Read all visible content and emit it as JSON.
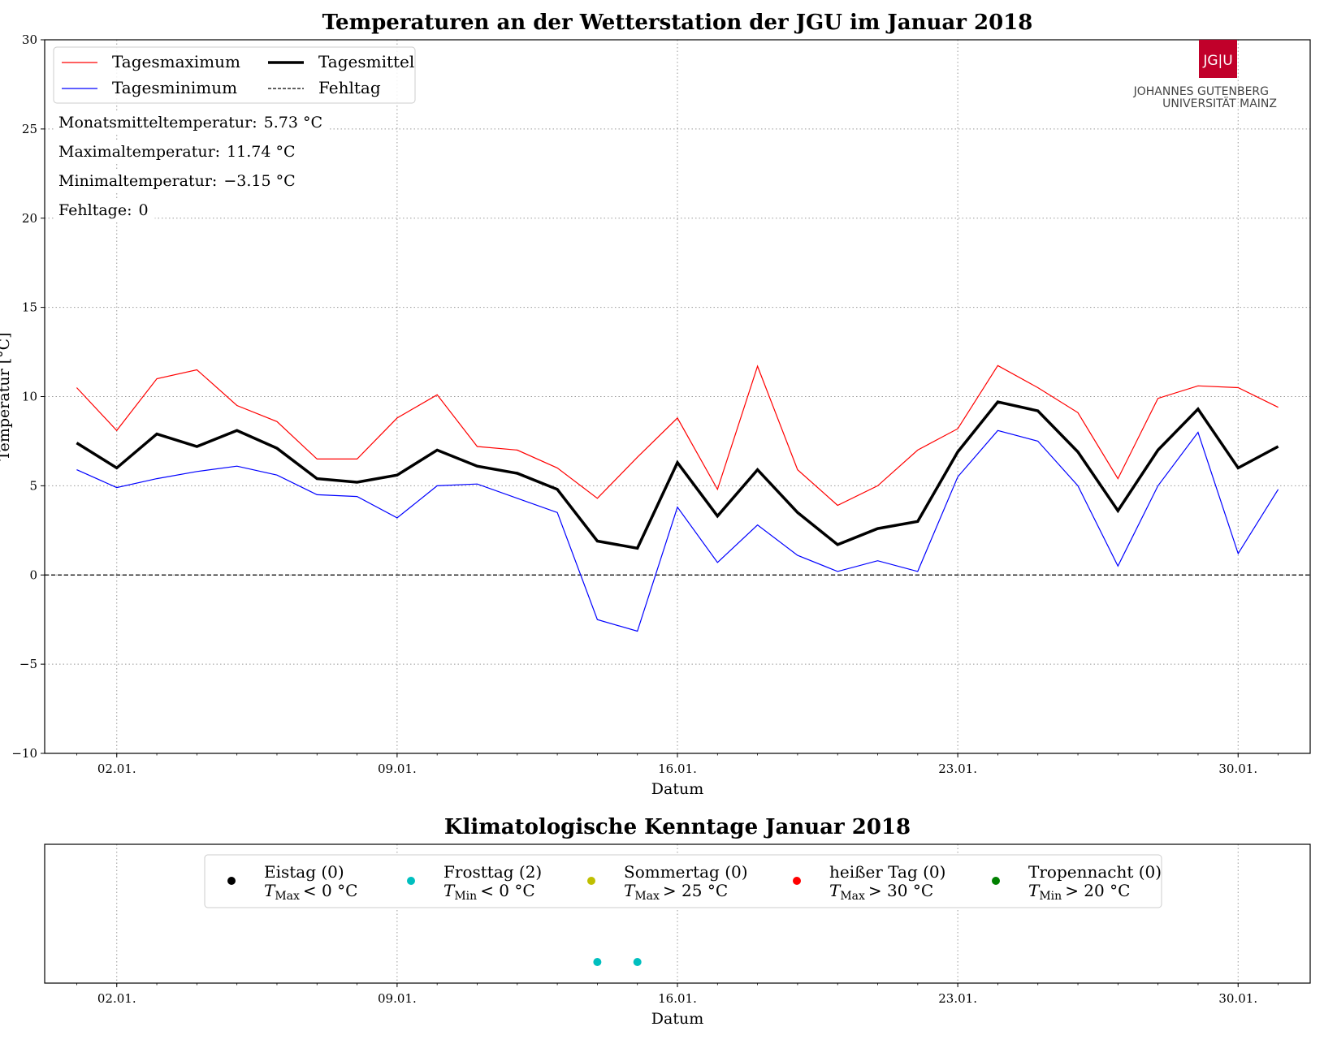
{
  "logo": {
    "mark": "JG|U",
    "line1": "JOHANNES GUTENBERG",
    "line2": "UNIVERSITÄT MAINZ",
    "color": "#c1002a"
  },
  "chart_data": [
    {
      "type": "line",
      "title": "Temperaturen an der Wetterstation der JGU im Januar 2018",
      "xlabel": "Datum",
      "ylabel": "Temperatur [°C]",
      "xlim": [
        0.2,
        31.8
      ],
      "ylim": [
        -10,
        30
      ],
      "yticks": [
        -10,
        -5,
        0,
        5,
        10,
        15,
        20,
        25,
        30
      ],
      "ytick_labels": [
        "−10",
        "−5",
        "0",
        "5",
        "10",
        "15",
        "20",
        "25",
        "30"
      ],
      "xticks": [
        2,
        9,
        16,
        23,
        30
      ],
      "xtick_labels": [
        "02.01.",
        "09.01.",
        "16.01.",
        "23.01.",
        "30.01."
      ],
      "grid": true,
      "legend_position": "top-left",
      "x": [
        1,
        2,
        3,
        4,
        5,
        6,
        7,
        8,
        9,
        10,
        11,
        12,
        13,
        14,
        15,
        16,
        17,
        18,
        19,
        20,
        21,
        22,
        23,
        24,
        25,
        26,
        27,
        28,
        29,
        30,
        31
      ],
      "series": [
        {
          "name": "Tagesmaximum",
          "color": "#ff0000",
          "values": [
            10.5,
            8.1,
            11.0,
            11.5,
            9.5,
            8.6,
            6.5,
            6.5,
            8.8,
            10.1,
            7.2,
            7.0,
            6.0,
            4.3,
            6.6,
            8.8,
            4.8,
            11.7,
            5.9,
            3.9,
            5.0,
            7.0,
            8.2,
            11.74,
            10.5,
            9.1,
            5.4,
            9.9,
            10.6,
            10.5,
            9.4
          ]
        },
        {
          "name": "Tagesminimum",
          "color": "#0000ff",
          "values": [
            5.9,
            4.9,
            5.4,
            5.8,
            6.1,
            5.6,
            4.5,
            4.4,
            3.2,
            5.0,
            5.1,
            4.3,
            3.5,
            -2.5,
            -3.15,
            3.8,
            0.7,
            2.8,
            1.1,
            0.2,
            0.8,
            0.2,
            5.5,
            8.1,
            7.5,
            5.0,
            0.5,
            5.0,
            8.0,
            1.2,
            4.8
          ]
        },
        {
          "name": "Tagesmittel",
          "color": "#000000",
          "values": [
            7.4,
            6.0,
            7.9,
            7.2,
            8.1,
            7.1,
            5.4,
            5.2,
            5.6,
            7.0,
            6.1,
            5.7,
            4.8,
            1.9,
            1.5,
            6.3,
            3.3,
            5.9,
            3.5,
            1.7,
            2.6,
            3.0,
            6.9,
            9.7,
            9.2,
            6.9,
            3.6,
            7.0,
            9.3,
            6.0,
            7.2
          ]
        }
      ],
      "reference_lines": [
        {
          "name": "Fehltag",
          "y": 0,
          "style": "dashed",
          "color": "#000000"
        }
      ],
      "annotations": [
        {
          "label": "Monatsmitteltemperatur:",
          "value": "5.73 °C"
        },
        {
          "label": "Maximaltemperatur:",
          "value": "11.74 °C"
        },
        {
          "label": "Minimaltemperatur:",
          "value": "−3.15 °C"
        },
        {
          "label": "Fehltage:",
          "value": "0"
        }
      ]
    },
    {
      "type": "scatter",
      "title": "Klimatologische Kenntage Januar 2018",
      "xlabel": "Datum",
      "xlim": [
        0.2,
        31.8
      ],
      "xticks": [
        2,
        9,
        16,
        23,
        30
      ],
      "xtick_labels": [
        "02.01.",
        "09.01.",
        "16.01.",
        "23.01.",
        "30.01."
      ],
      "grid": true,
      "legend_position": "top-center",
      "legend": [
        {
          "name": "Eistag (0)",
          "condition": "< 0 °C",
          "var": "T",
          "sub": "Max",
          "color": "#000000"
        },
        {
          "name": "Frosttag (2)",
          "condition": "< 0 °C",
          "var": "T",
          "sub": "Min",
          "color": "#00bfbf"
        },
        {
          "name": "Sommertag (0)",
          "condition": "> 25 °C",
          "var": "T",
          "sub": "Max",
          "color": "#bfbf00"
        },
        {
          "name": "heißer Tag (0)",
          "condition": "> 30 °C",
          "var": "T",
          "sub": "Max",
          "color": "#ff0000"
        },
        {
          "name": "Tropennacht (0)",
          "condition": "> 20 °C",
          "var": "T",
          "sub": "Min",
          "color": "#008000"
        }
      ],
      "points": [
        {
          "series": "Frosttag (2)",
          "x": 14
        },
        {
          "series": "Frosttag (2)",
          "x": 15
        }
      ]
    }
  ]
}
